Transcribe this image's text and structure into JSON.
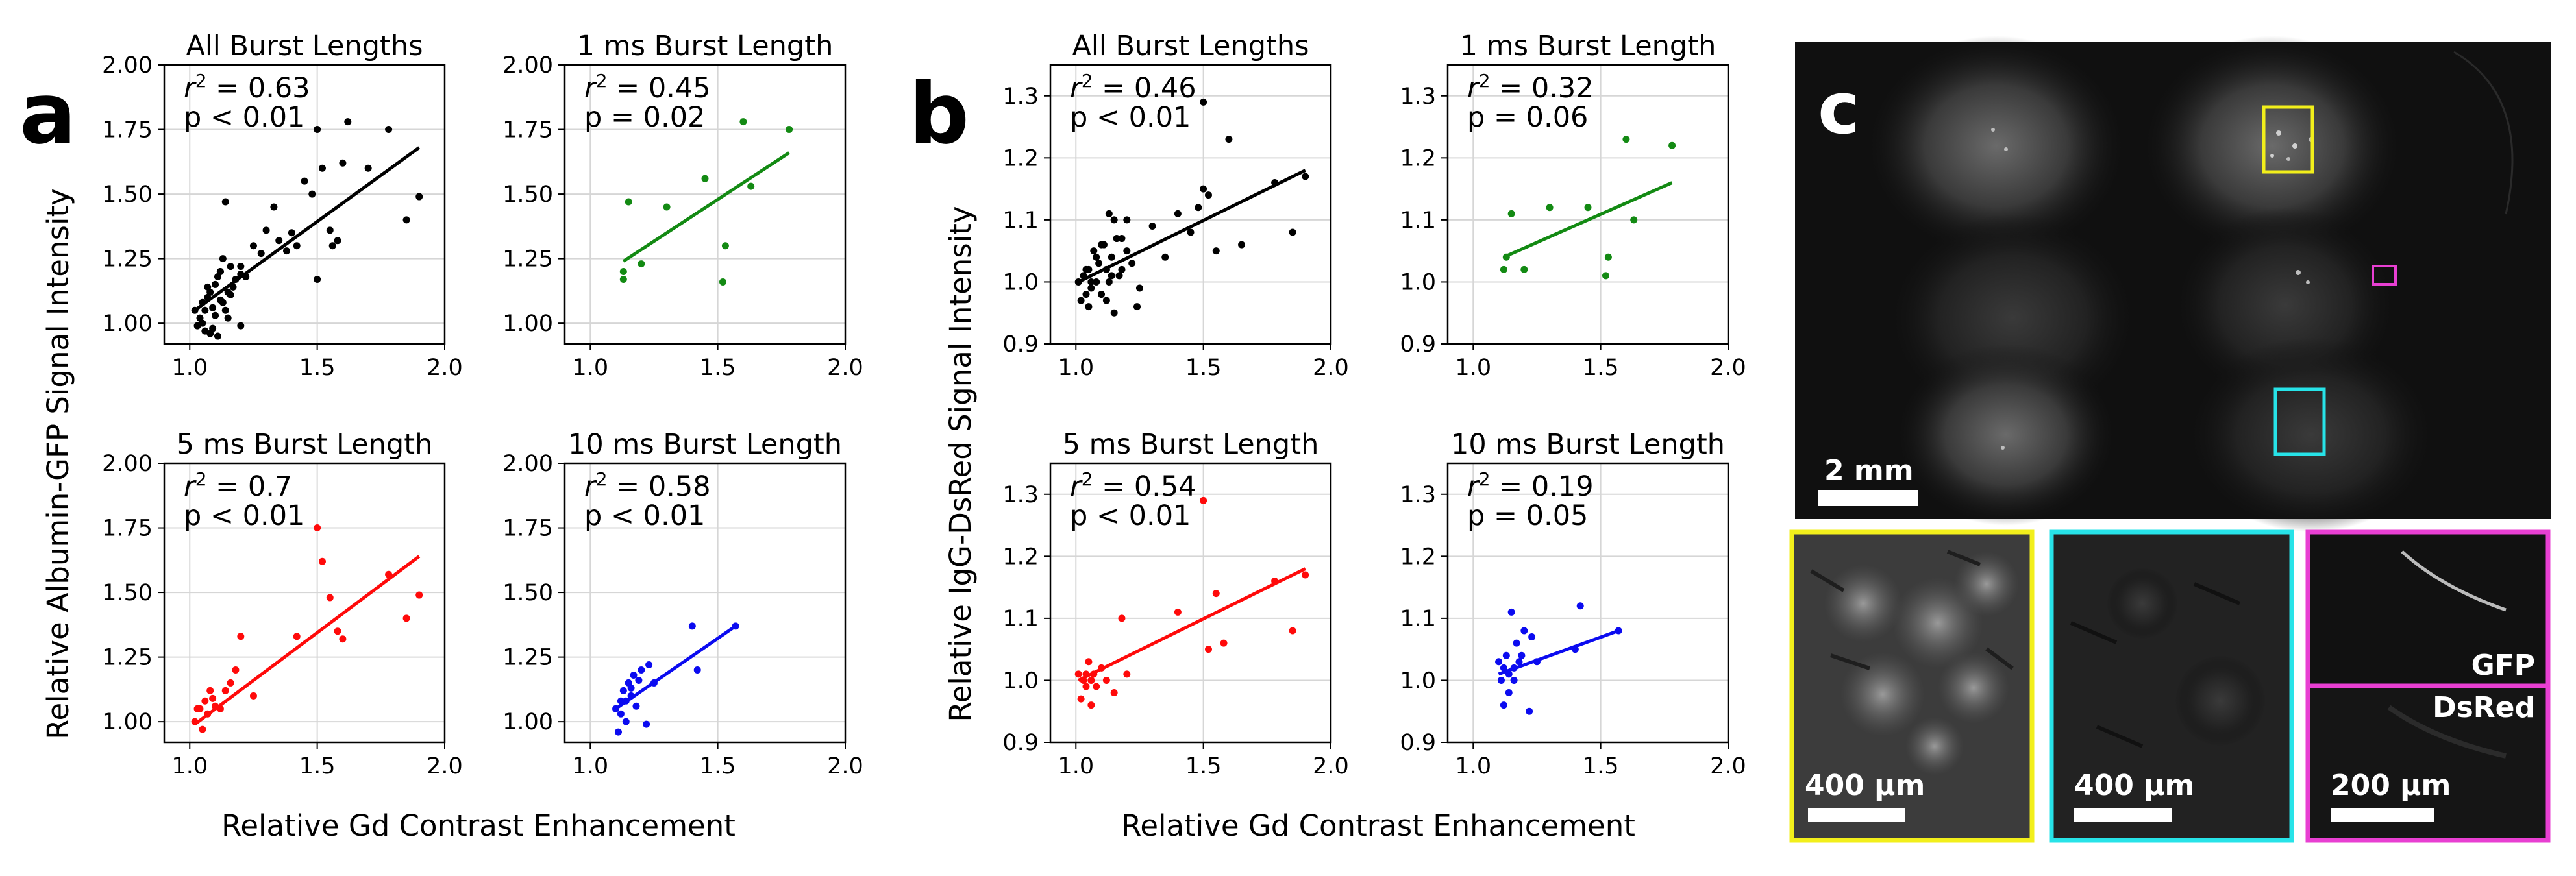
{
  "figure": {
    "panel_labels": {
      "a": "a",
      "b": "b",
      "c": "c"
    },
    "colors": {
      "black": "#000000",
      "green": "#138a13",
      "red": "#ff0a0a",
      "blue": "#0b0bf0",
      "yellow": "#f2ef1b",
      "cyan": "#27e3e8",
      "magenta": "#e83fd2"
    }
  },
  "panel_a": {
    "xlabel": "Relative Gd Contrast Enhancement",
    "ylabel": "Relative Albumin-GFP Signal Intensity",
    "xlim": [
      0.9,
      2.0
    ],
    "ylim": [
      0.92,
      2.0
    ],
    "xticks": [
      "1.0",
      "1.5",
      "2.0"
    ],
    "xtick_values": [
      1.0,
      1.5,
      2.0
    ],
    "yticks": [
      "1.00",
      "1.25",
      "1.50",
      "1.75",
      "2.00"
    ],
    "ytick_values": [
      1.0,
      1.25,
      1.5,
      1.75,
      2.0
    ]
  },
  "panel_b": {
    "xlabel": "Relative Gd Contrast Enhancement",
    "ylabel": "Relative IgG-DsRed Signal Intensity",
    "xlim": [
      0.9,
      2.0
    ],
    "ylim": [
      0.9,
      1.35
    ],
    "xticks": [
      "1.0",
      "1.5",
      "2.0"
    ],
    "xtick_values": [
      1.0,
      1.5,
      2.0
    ],
    "yticks": [
      "0.9",
      "1.0",
      "1.1",
      "1.2",
      "1.3"
    ],
    "ytick_values": [
      0.9,
      1.0,
      1.1,
      1.2,
      1.3
    ]
  },
  "chart_data": [
    {
      "panel": "a",
      "type": "scatter",
      "title": "All Burst Lengths",
      "r2": "0.63",
      "p": "p < 0.01",
      "color": "#000000",
      "x": [
        1.02,
        1.03,
        1.05,
        1.04,
        1.06,
        1.07,
        1.08,
        1.09,
        1.1,
        1.11,
        1.12,
        1.13,
        1.14,
        1.15,
        1.16,
        1.05,
        1.08,
        1.1,
        1.12,
        1.15,
        1.17,
        1.2,
        1.22,
        1.25,
        1.28,
        1.3,
        1.33,
        1.35,
        1.38,
        1.4,
        1.42,
        1.45,
        1.48,
        1.5,
        1.52,
        1.55,
        1.58,
        1.6,
        1.62,
        1.7,
        1.78,
        1.85,
        1.9,
        1.07,
        1.09,
        1.13,
        1.18,
        1.2,
        1.11,
        1.14,
        1.16,
        1.06,
        1.5,
        1.56,
        1.12,
        1.2
      ],
      "y": [
        1.05,
        0.99,
        1.08,
        1.02,
        0.97,
        1.1,
        1.12,
        1.06,
        1.15,
        1.18,
        1.2,
        1.08,
        1.05,
        1.02,
        1.11,
        1.0,
        0.96,
        1.03,
        1.2,
        1.12,
        1.14,
        1.22,
        1.18,
        1.3,
        1.27,
        1.36,
        1.45,
        1.32,
        1.28,
        1.35,
        1.3,
        1.55,
        1.5,
        1.75,
        1.6,
        1.36,
        1.32,
        1.62,
        1.78,
        1.6,
        1.75,
        1.4,
        1.49,
        1.14,
        0.98,
        1.25,
        1.17,
        0.99,
        0.95,
        1.47,
        1.22,
        1.05,
        1.17,
        1.3,
        1.09,
        1.19
      ],
      "fit": [
        [
          1.02,
          1.05
        ],
        [
          1.9,
          1.68
        ]
      ]
    },
    {
      "panel": "a",
      "type": "scatter",
      "title": "1 ms Burst Length",
      "r2": "0.45",
      "p": "p = 0.02",
      "color": "#138a13",
      "x": [
        1.13,
        1.13,
        1.15,
        1.2,
        1.3,
        1.45,
        1.52,
        1.53,
        1.6,
        1.63,
        1.78
      ],
      "y": [
        1.17,
        1.2,
        1.47,
        1.23,
        1.45,
        1.56,
        1.16,
        1.3,
        1.78,
        1.53,
        1.75
      ],
      "fit": [
        [
          1.13,
          1.24
        ],
        [
          1.78,
          1.66
        ]
      ]
    },
    {
      "panel": "a",
      "type": "scatter",
      "title": "5 ms Burst Length",
      "r2": "0.7",
      "p": "p < 0.01",
      "color": "#ff0a0a",
      "x": [
        1.02,
        1.03,
        1.05,
        1.06,
        1.07,
        1.08,
        1.1,
        1.12,
        1.14,
        1.16,
        1.18,
        1.2,
        1.25,
        1.5,
        1.52,
        1.55,
        1.58,
        1.6,
        1.78,
        1.85,
        1.9,
        1.42,
        1.04,
        1.09
      ],
      "y": [
        1.0,
        1.05,
        0.97,
        1.08,
        1.03,
        1.12,
        1.06,
        1.05,
        1.12,
        1.15,
        1.2,
        1.33,
        1.1,
        1.75,
        1.62,
        1.48,
        1.35,
        1.32,
        1.57,
        1.4,
        1.49,
        1.33,
        1.05,
        1.09
      ],
      "fit": [
        [
          1.02,
          0.99
        ],
        [
          1.9,
          1.64
        ]
      ]
    },
    {
      "panel": "a",
      "type": "scatter",
      "title": "10 ms Burst Length",
      "r2": "0.58",
      "p": "p < 0.01",
      "color": "#0b0bf0",
      "x": [
        1.1,
        1.11,
        1.12,
        1.13,
        1.14,
        1.15,
        1.16,
        1.17,
        1.18,
        1.2,
        1.22,
        1.23,
        1.25,
        1.4,
        1.42,
        1.57,
        1.12,
        1.14,
        1.16,
        1.19
      ],
      "y": [
        1.05,
        0.96,
        1.08,
        1.12,
        1.0,
        1.15,
        1.1,
        1.18,
        1.06,
        1.2,
        0.99,
        1.22,
        1.15,
        1.37,
        1.2,
        1.37,
        1.03,
        1.08,
        1.13,
        1.16
      ],
      "fit": [
        [
          1.1,
          1.05
        ],
        [
          1.57,
          1.37
        ]
      ]
    },
    {
      "panel": "b",
      "type": "scatter",
      "title": "All Burst Lengths",
      "r2": "0.46",
      "p": "p < 0.01",
      "color": "#000000",
      "x": [
        1.01,
        1.02,
        1.03,
        1.04,
        1.05,
        1.06,
        1.07,
        1.08,
        1.09,
        1.1,
        1.11,
        1.12,
        1.13,
        1.14,
        1.15,
        1.16,
        1.17,
        1.18,
        1.2,
        1.22,
        1.25,
        1.3,
        1.35,
        1.4,
        1.45,
        1.48,
        1.5,
        1.52,
        1.55,
        1.6,
        1.65,
        1.78,
        1.85,
        1.9,
        1.05,
        1.08,
        1.12,
        1.15,
        1.18,
        1.06,
        1.1,
        1.14,
        1.04,
        1.5,
        1.2,
        1.13,
        1.24
      ],
      "y": [
        1.0,
        0.97,
        1.01,
        1.02,
        0.96,
        0.99,
        1.05,
        1.0,
        1.03,
        0.98,
        1.06,
        1.02,
        1.11,
        1.04,
        0.95,
        1.07,
        1.01,
        1.02,
        1.05,
        1.03,
        0.99,
        1.09,
        1.04,
        1.11,
        1.08,
        1.12,
        1.29,
        1.14,
        1.05,
        1.23,
        1.06,
        1.16,
        1.08,
        1.17,
        1.02,
        1.04,
        0.97,
        1.1,
        1.07,
        1.0,
        1.06,
        1.01,
        0.98,
        1.15,
        1.1,
        1.0,
        0.96
      ],
      "fit": [
        [
          1.01,
          1.0
        ],
        [
          1.9,
          1.18
        ]
      ]
    },
    {
      "panel": "b",
      "type": "scatter",
      "title": "1 ms Burst Length",
      "r2": "0.32",
      "p": "p = 0.06",
      "color": "#138a13",
      "x": [
        1.12,
        1.13,
        1.15,
        1.2,
        1.3,
        1.45,
        1.52,
        1.53,
        1.6,
        1.63,
        1.78
      ],
      "y": [
        1.02,
        1.04,
        1.11,
        1.02,
        1.12,
        1.12,
        1.01,
        1.04,
        1.23,
        1.1,
        1.22
      ],
      "fit": [
        [
          1.12,
          1.04
        ],
        [
          1.78,
          1.16
        ]
      ]
    },
    {
      "panel": "b",
      "type": "scatter",
      "title": "5 ms Burst Length",
      "r2": "0.54",
      "p": "p < 0.01",
      "color": "#ff0a0a",
      "x": [
        1.01,
        1.02,
        1.03,
        1.04,
        1.05,
        1.06,
        1.07,
        1.08,
        1.1,
        1.12,
        1.15,
        1.18,
        1.2,
        1.4,
        1.5,
        1.52,
        1.55,
        1.58,
        1.78,
        1.85,
        1.9,
        1.04,
        1.06
      ],
      "y": [
        1.01,
        0.97,
        1.0,
        0.99,
        1.03,
        0.96,
        1.01,
        0.99,
        1.02,
        1.0,
        0.98,
        1.1,
        1.01,
        1.11,
        1.29,
        1.05,
        1.14,
        1.06,
        1.16,
        1.08,
        1.17,
        1.01,
        1.0
      ],
      "fit": [
        [
          1.01,
          1.0
        ],
        [
          1.9,
          1.18
        ]
      ]
    },
    {
      "panel": "b",
      "type": "scatter",
      "title": "10 ms Burst Length",
      "r2": "0.19",
      "p": "p = 0.05",
      "color": "#0b0bf0",
      "x": [
        1.1,
        1.11,
        1.12,
        1.13,
        1.14,
        1.15,
        1.16,
        1.17,
        1.18,
        1.2,
        1.22,
        1.23,
        1.25,
        1.4,
        1.42,
        1.57,
        1.12,
        1.14,
        1.16,
        1.19
      ],
      "y": [
        1.03,
        1.0,
        1.02,
        1.04,
        0.98,
        1.11,
        1.02,
        1.06,
        1.03,
        1.08,
        0.95,
        1.07,
        1.03,
        1.05,
        1.12,
        1.08,
        0.96,
        1.01,
        1.0,
        1.04
      ],
      "fit": [
        [
          1.1,
          1.01
        ],
        [
          1.57,
          1.08
        ]
      ]
    }
  ],
  "panel_c": {
    "main_scale": "2 mm",
    "inset_scales": [
      "400 μm",
      "400 μm",
      "200 μm"
    ],
    "channel_labels": {
      "top": "GFP",
      "bottom": "DsRed"
    }
  }
}
